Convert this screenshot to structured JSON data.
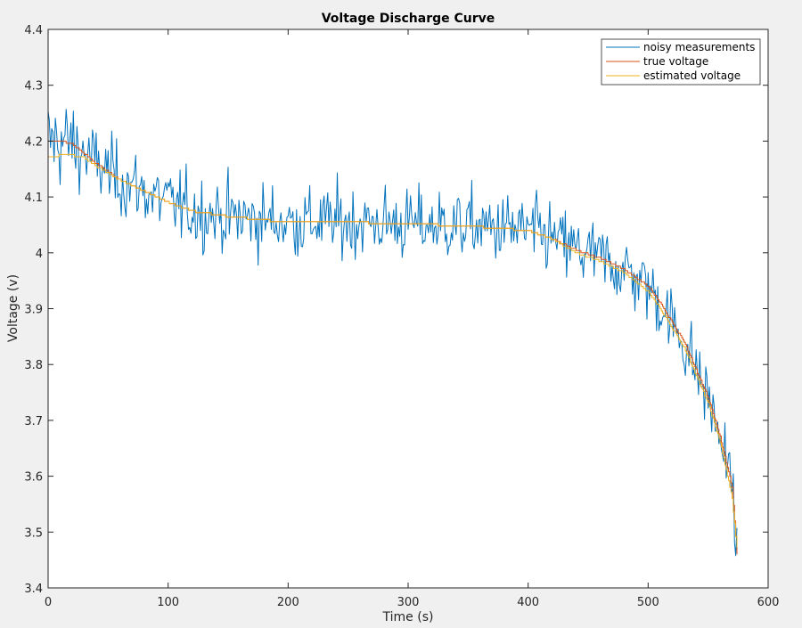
{
  "chart_data": {
    "type": "line",
    "title": "Voltage Discharge Curve",
    "xlabel": "Time (s)",
    "ylabel": "Voltage (v)",
    "xlim": [
      0,
      600
    ],
    "ylim": [
      3.4,
      4.4
    ],
    "xticks": [
      0,
      100,
      200,
      300,
      400,
      500,
      600
    ],
    "yticks": [
      3.4,
      3.5,
      3.6,
      3.7,
      3.8,
      3.9,
      4.0,
      4.1,
      4.2,
      4.3,
      4.4
    ],
    "xtick_labels": [
      "0",
      "100",
      "200",
      "300",
      "400",
      "500",
      "600"
    ],
    "ytick_labels": [
      "3.4",
      "3.5",
      "3.6",
      "3.7",
      "3.8",
      "3.9",
      "4",
      "4.1",
      "4.2",
      "4.3",
      "4.4"
    ],
    "grid": false,
    "legend_position": "top-right",
    "series": [
      {
        "name": "noisy measurements",
        "color": "#0072bd",
        "noise": 0.032,
        "x": [
          0,
          10,
          20,
          40,
          60,
          80,
          100,
          120,
          150,
          200,
          250,
          300,
          350,
          400,
          420,
          440,
          460,
          480,
          500,
          510,
          520,
          530,
          540,
          550,
          560,
          570,
          574
        ],
        "y": [
          4.2,
          4.2,
          4.195,
          4.16,
          4.13,
          4.11,
          4.09,
          4.075,
          4.065,
          4.055,
          4.055,
          4.052,
          4.048,
          4.04,
          4.025,
          4.005,
          3.99,
          3.97,
          3.94,
          3.91,
          3.875,
          3.84,
          3.79,
          3.74,
          3.67,
          3.58,
          3.5
        ]
      },
      {
        "name": "true voltage",
        "color": "#d95319",
        "noise": 0,
        "x": [
          0,
          10,
          20,
          40,
          60,
          80,
          100,
          120,
          150,
          200,
          250,
          300,
          350,
          400,
          420,
          440,
          460,
          480,
          500,
          510,
          520,
          530,
          540,
          550,
          560,
          570,
          574
        ],
        "y": [
          4.2,
          4.2,
          4.195,
          4.16,
          4.13,
          4.11,
          4.09,
          4.075,
          4.065,
          4.055,
          4.055,
          4.052,
          4.048,
          4.04,
          4.025,
          4.005,
          3.99,
          3.97,
          3.94,
          3.91,
          3.875,
          3.84,
          3.79,
          3.74,
          3.67,
          3.58,
          3.46
        ]
      },
      {
        "name": "estimated voltage",
        "color": "#edb120",
        "noise": 0,
        "x": [
          0,
          10,
          20,
          30,
          40,
          60,
          80,
          100,
          120,
          150,
          200,
          250,
          300,
          350,
          400,
          420,
          440,
          460,
          480,
          500,
          510,
          520,
          530,
          540,
          550,
          560,
          570,
          574
        ],
        "y": [
          4.17,
          4.175,
          4.175,
          4.17,
          4.155,
          4.13,
          4.11,
          4.09,
          4.075,
          4.065,
          4.055,
          4.055,
          4.052,
          4.048,
          4.04,
          4.025,
          4.0,
          3.985,
          3.965,
          3.93,
          3.9,
          3.865,
          3.83,
          3.78,
          3.73,
          3.66,
          3.56,
          3.47
        ]
      }
    ]
  }
}
